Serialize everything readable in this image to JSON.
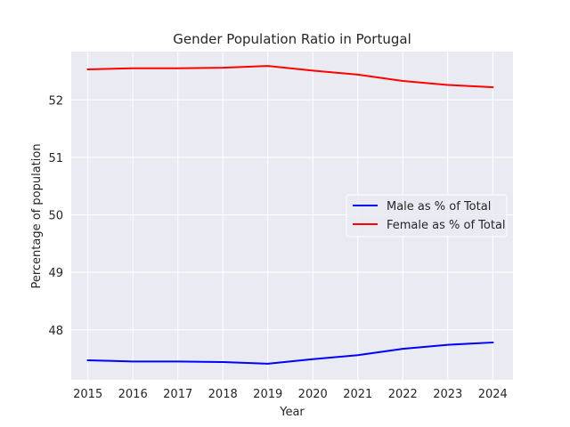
{
  "chart_data": {
    "type": "line",
    "title": "Gender Population Ratio in Portugal",
    "xlabel": "Year",
    "ylabel": "Percentage of population",
    "x": [
      2015,
      2016,
      2017,
      2018,
      2019,
      2020,
      2021,
      2022,
      2023,
      2024
    ],
    "x_ticks": [
      "2015",
      "2016",
      "2017",
      "2018",
      "2019",
      "2020",
      "2021",
      "2022",
      "2023",
      "2024"
    ],
    "y_ticks": [
      "48",
      "49",
      "50",
      "51",
      "52"
    ],
    "xlim": [
      2014.63,
      2024.45
    ],
    "ylim": [
      47.13,
      52.84
    ],
    "grid": true,
    "legend_position": "center-right",
    "series": [
      {
        "name": "Male as % of Total",
        "color": "#0000ff",
        "values": [
          47.47,
          47.45,
          47.45,
          47.44,
          47.41,
          47.49,
          47.56,
          47.67,
          47.74,
          47.78
        ]
      },
      {
        "name": "Female as % of Total",
        "color": "#ff0000",
        "values": [
          52.53,
          52.55,
          52.55,
          52.56,
          52.59,
          52.51,
          52.44,
          52.33,
          52.26,
          52.22
        ]
      }
    ]
  }
}
